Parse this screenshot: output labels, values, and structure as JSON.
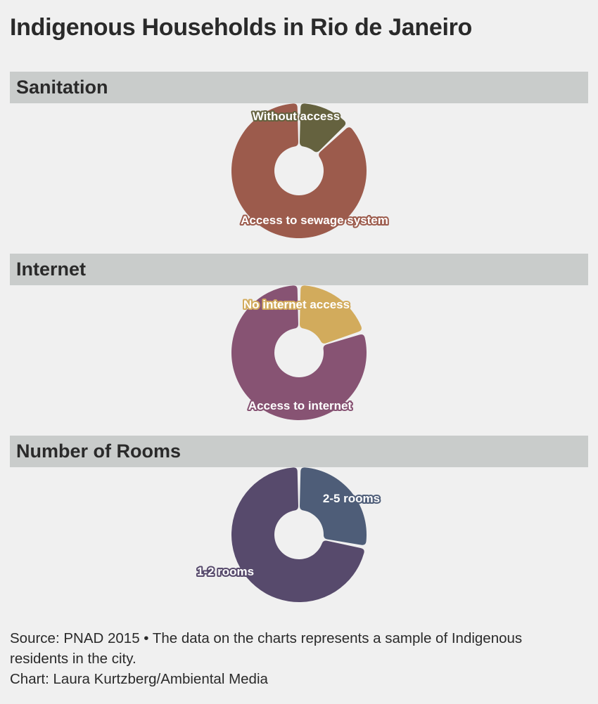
{
  "title": "Indigenous Households in Rio de Janeiro",
  "chart_data": [
    {
      "type": "pie",
      "title": "Sanitation",
      "categories": [
        "Without access",
        "Access to sewage system"
      ],
      "values": [
        13,
        87
      ],
      "colors": [
        "#65623f",
        "#9c5b4c"
      ]
    },
    {
      "type": "pie",
      "title": "Internet",
      "categories": [
        "No internet access",
        "Access to internet"
      ],
      "values": [
        20,
        80
      ],
      "colors": [
        "#d2ab5c",
        "#875373"
      ]
    },
    {
      "type": "pie",
      "title": "Number of Rooms",
      "categories": [
        "2-5 rooms",
        "1-2 rooms"
      ],
      "values": [
        28,
        72
      ],
      "colors": [
        "#4e5d78",
        "#574a6c"
      ]
    }
  ],
  "footer": {
    "source": "Source: PNAD 2015 • The data on the charts represents a sample of Indigenous residents in the city.",
    "credit": "Chart: Laura Kurtzberg/Ambiental Media"
  }
}
